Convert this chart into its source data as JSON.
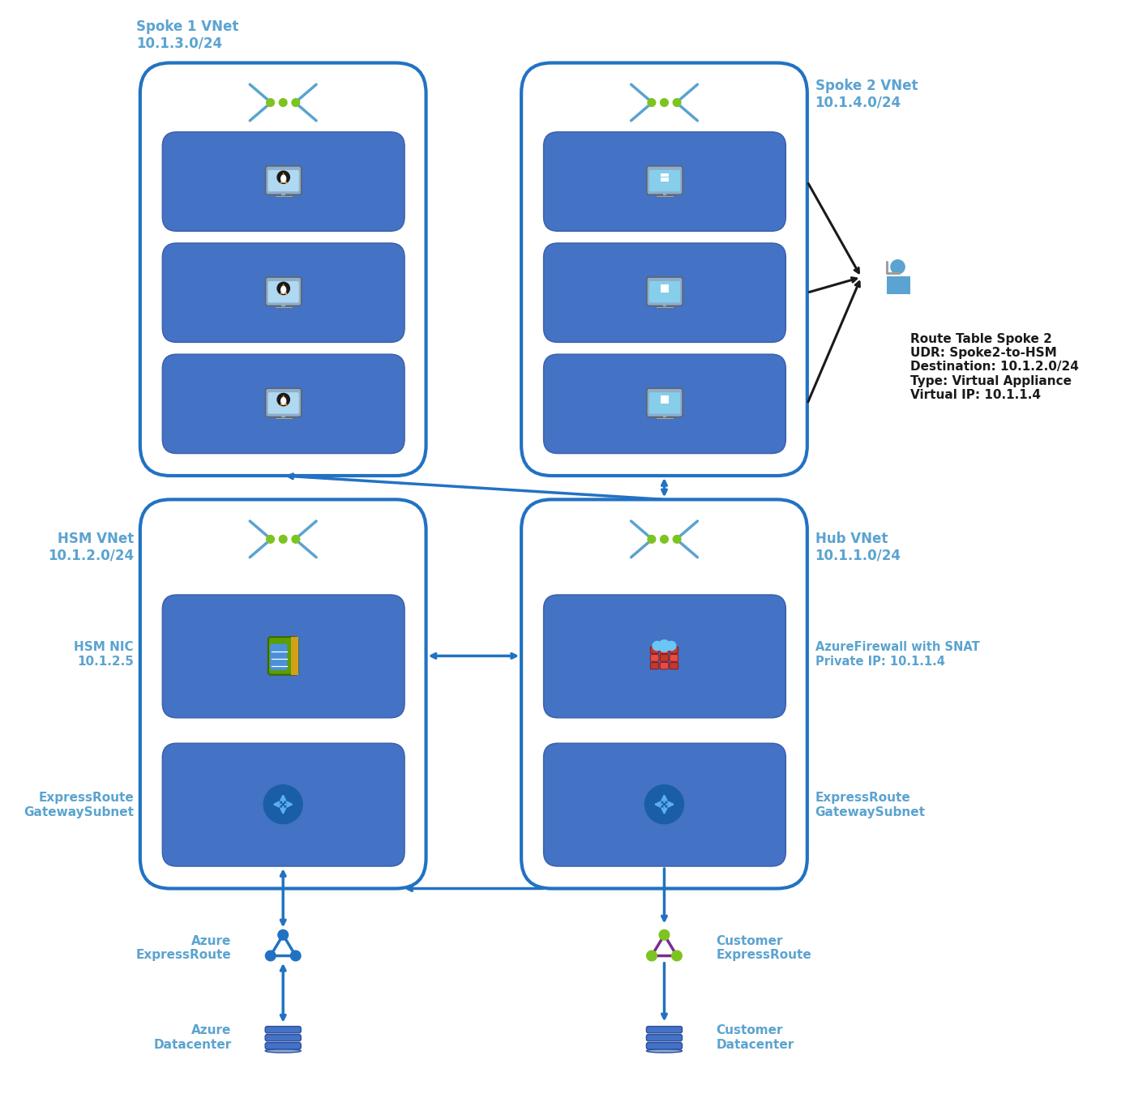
{
  "bg_color": "#ffffff",
  "azure_blue": "#2272C3",
  "vnet_border": "#2272C3",
  "tile_bg": "#4472C4",
  "label_color": "#5BA3D0",
  "spoke1_label": "Spoke 1 VNet\n10.1.3.0/24",
  "spoke2_label": "Spoke 2 VNet\n10.1.4.0/24",
  "hsm_label": "HSM VNet\n10.1.2.0/24",
  "hub_label": "Hub VNet\n10.1.1.0/24",
  "hsm_nic_label": "HSM NIC\n10.1.2.5",
  "er_gw_label": "ExpressRoute\nGatewaySubnet",
  "firewall_label": "AzureFirewall with SNAT\nPrivate IP: 10.1.1.4",
  "hub_er_gw_label": "ExpressRoute\nGatewaySubnet",
  "azure_er_label": "Azure\nExpressRoute",
  "azure_dc_label": "Azure\nDatacenter",
  "customer_er_label": "Customer\nExpressRoute",
  "customer_dc_label": "Customer\nDatacenter",
  "route_table_text": "Route Table Spoke 2\nUDR: Spoke2-to-HSM\nDestination: 10.1.2.0/24\nType: Virtual Appliance\nVirtual IP: 10.1.1.4"
}
